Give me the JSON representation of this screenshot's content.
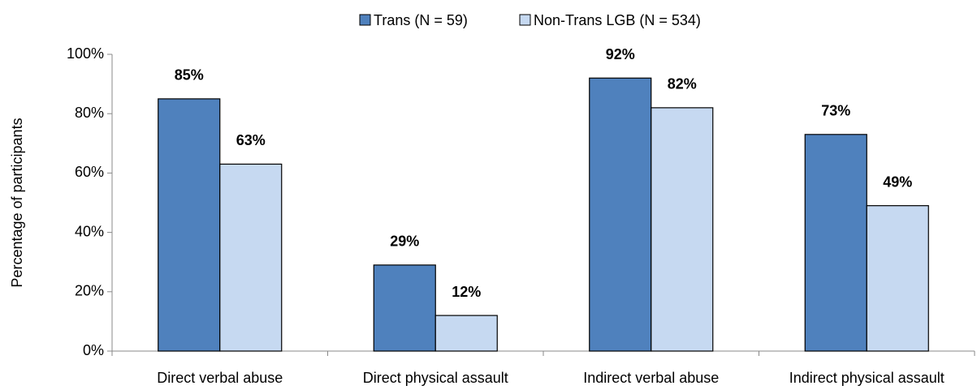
{
  "chart_data": {
    "type": "bar",
    "y_label": "Percentage of participants",
    "categories": [
      "Direct verbal abuse",
      "Direct physical assault",
      "Indirect verbal abuse",
      "Indirect physical assault"
    ],
    "series": [
      {
        "name": "Trans (N = 59)",
        "color": "#4f81bd",
        "values": [
          85,
          29,
          92,
          73
        ],
        "value_labels": [
          "85%",
          "29%",
          "92%",
          "73%"
        ]
      },
      {
        "name": "Non-Trans LGB (N = 534)",
        "color": "#c6d9f1",
        "values": [
          63,
          12,
          82,
          49
        ],
        "value_labels": [
          "63%",
          "12%",
          "82%",
          "49%"
        ]
      }
    ],
    "ylim": [
      0,
      100
    ],
    "yticks": [
      {
        "value": 0,
        "label": "0%"
      },
      {
        "value": 20,
        "label": "20%"
      },
      {
        "value": 40,
        "label": "40%"
      },
      {
        "value": 60,
        "label": "60%"
      },
      {
        "value": 80,
        "label": "80%"
      },
      {
        "value": 100,
        "label": "100%"
      }
    ],
    "legend": "top"
  }
}
